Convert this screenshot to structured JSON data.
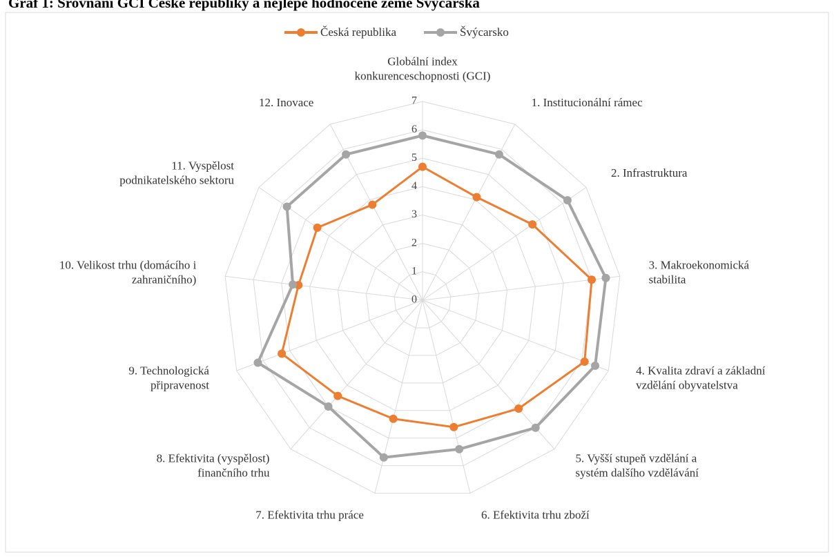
{
  "chart_data": {
    "type": "radar",
    "title": "Graf 1: Srovnání GCI České republiky a nejlépe hodnocené země Švýcarska",
    "categories": [
      [
        "Globální index",
        "konkurenceschopnosti (GCI)"
      ],
      [
        "1. Institucionální rámec"
      ],
      [
        "2. Infrastruktura"
      ],
      [
        "3. Makroekonomická",
        "stabilita"
      ],
      [
        "4. Kvalita zdraví a základní",
        "vzdělání obyvatelstva"
      ],
      [
        "5. Vyšší stupeň vzdělání a",
        "systém dalšího vzdělávání"
      ],
      [
        "6. Efektivita trhu zboží"
      ],
      [
        "7. Efektivita trhu práce"
      ],
      [
        "8. Efektivita (vyspělost)",
        "finančního trhu"
      ],
      [
        "9. Technologická",
        "připravenost"
      ],
      [
        "10. Velikost trhu (domácího i",
        "zahraničního)"
      ],
      [
        "11. Vyspělost",
        "podnikatelského sektoru"
      ],
      [
        "12. Inovace"
      ]
    ],
    "series": [
      {
        "name": "Česká republika",
        "color": "#ed7d31",
        "values": [
          4.7,
          4.1,
          4.7,
          6.0,
          6.1,
          5.1,
          4.6,
          4.3,
          4.5,
          5.3,
          4.4,
          4.5,
          3.8
        ]
      },
      {
        "name": "Švýcarsko",
        "color": "#a5a5a5",
        "values": [
          5.8,
          5.8,
          6.2,
          6.5,
          6.5,
          6.0,
          5.4,
          5.7,
          5.0,
          6.2,
          4.6,
          5.8,
          5.8
        ]
      }
    ],
    "ylim": [
      0,
      7
    ],
    "yticks": [
      0,
      1,
      2,
      3,
      4,
      5,
      6,
      7
    ],
    "grid": true,
    "legend": "top"
  }
}
